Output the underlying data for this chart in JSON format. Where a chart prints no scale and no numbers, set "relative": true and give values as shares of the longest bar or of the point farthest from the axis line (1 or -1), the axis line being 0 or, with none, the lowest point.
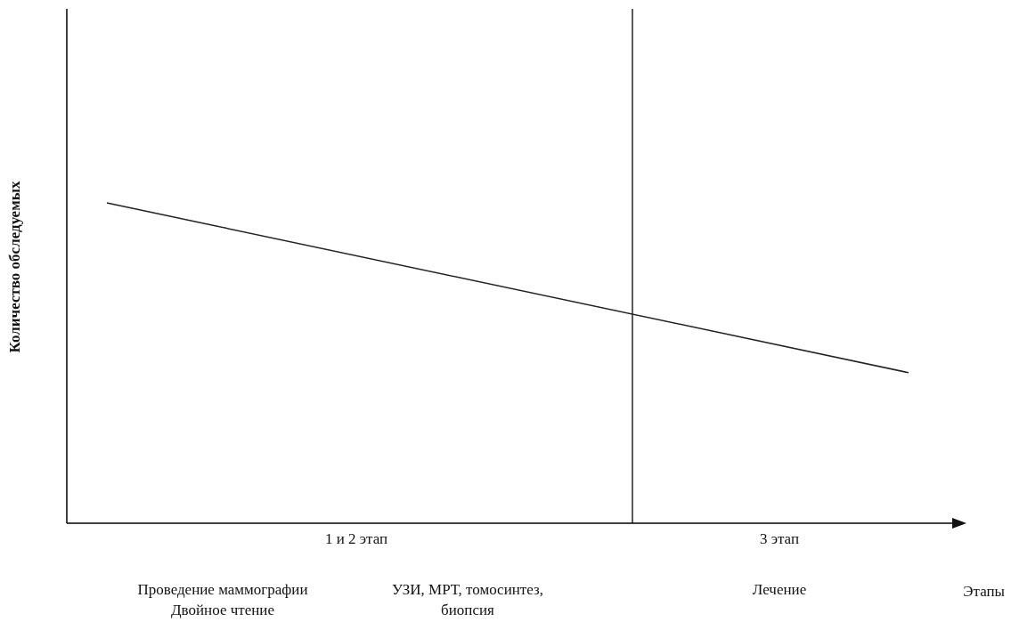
{
  "chart_data": {
    "type": "line",
    "relative": true,
    "xlabel": "Этапы",
    "ylabel": "Количество обследуемых",
    "categories": [
      null,
      null
    ],
    "series": [
      {
        "color": "#222222",
        "values": [
          1,
          0.47
        ]
      }
    ],
    "ref_lines": [
      {
        "axis": "x",
        "color": "#000000"
      }
    ],
    "annotations": [
      "1  и  2  этап",
      "3  этап",
      "Проведение маммографии\nДвойное чтение",
      "УЗИ, МРТ, томосинтез,\nбиопсия",
      "Лечение"
    ]
  }
}
